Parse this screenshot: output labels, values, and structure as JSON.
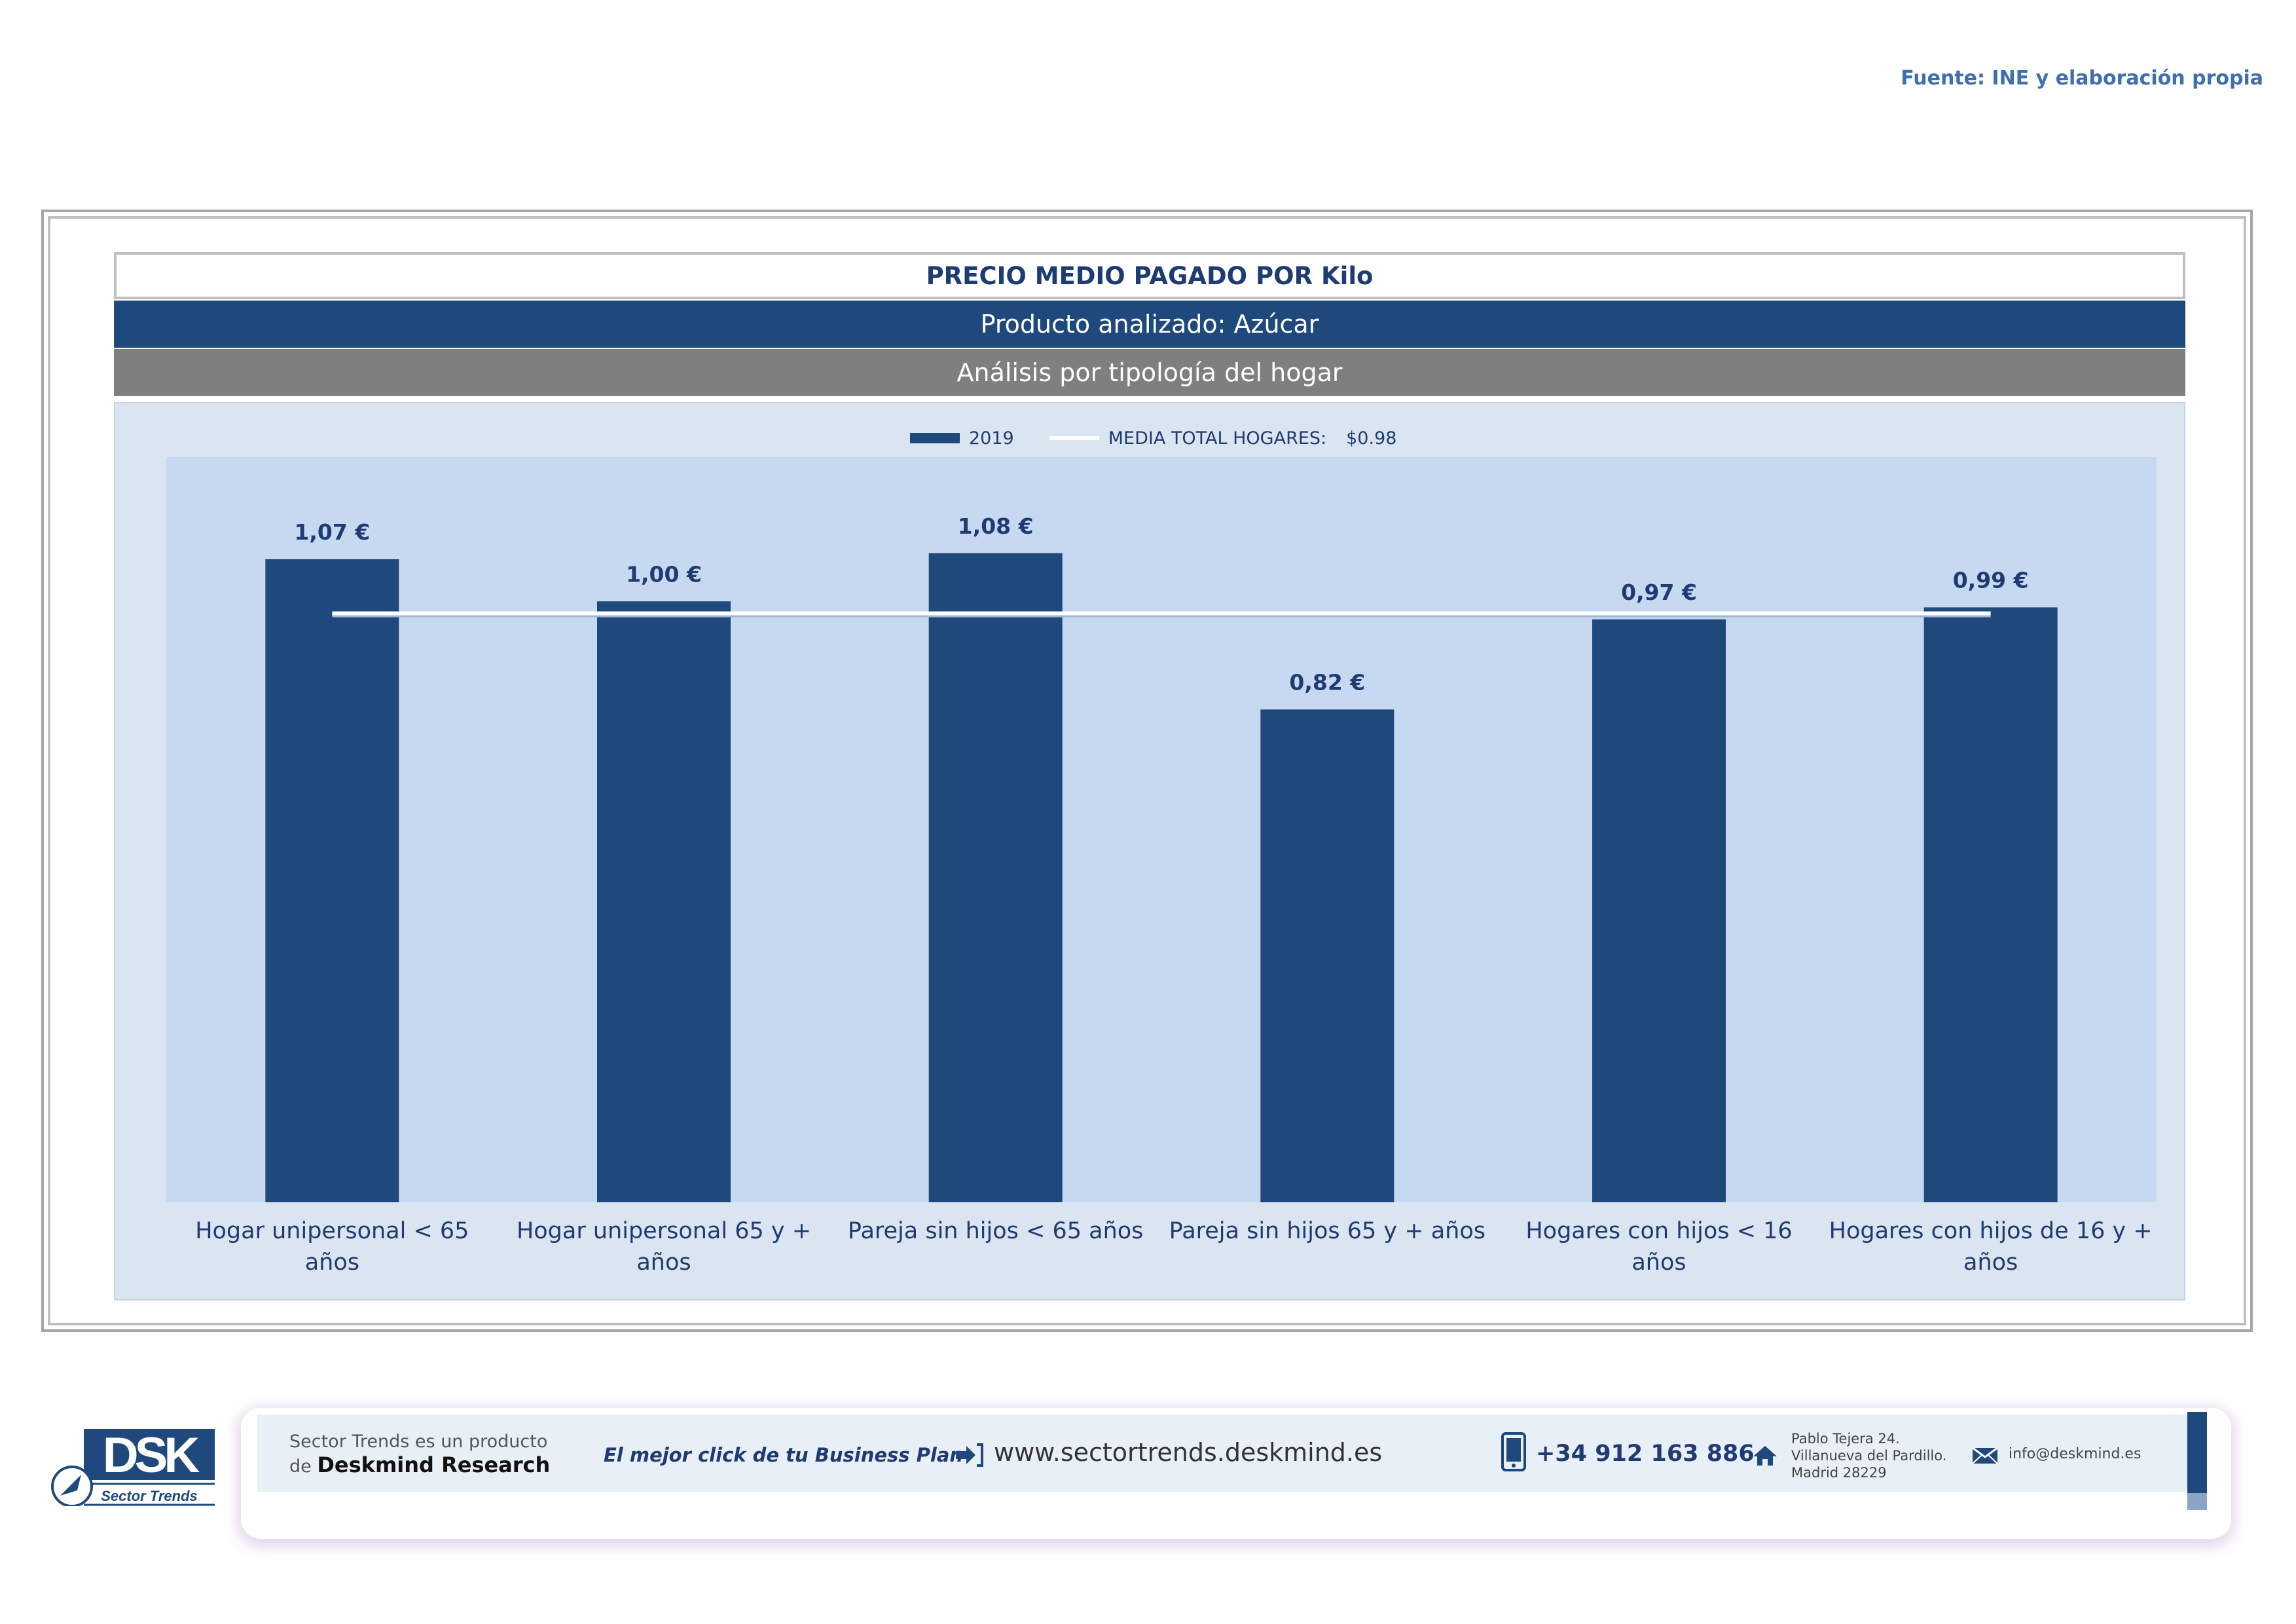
{
  "source": "Fuente: INE y elaboración propia",
  "header": {
    "title": "PRECIO MEDIO PAGADO POR Kilo",
    "product": "Producto analizado: Azúcar",
    "analysis": "Análisis por tipología del hogar"
  },
  "legend": {
    "series_label": "2019",
    "line_label": "MEDIA TOTAL  HOGARES:",
    "line_value": "$0.98"
  },
  "chart_data": {
    "type": "bar",
    "categories": [
      "Hogar unipersonal < 65 años",
      "Hogar unipersonal  65 y + años",
      "Pareja sin hijos < 65 años",
      "Pareja sin hijos 65 y + años",
      "Hogares con hijos < 16 años",
      "Hogares con hijos de 16 y + años"
    ],
    "category_lines": [
      [
        "Hogar unipersonal < 65 años"
      ],
      [
        "Hogar unipersonal  65 y +",
        "años"
      ],
      [
        "Pareja sin hijos < 65 años"
      ],
      [
        "Pareja sin hijos 65 y + años"
      ],
      [
        "Hogares con hijos < 16 años"
      ],
      [
        "Hogares con hijos de 16 y +",
        "años"
      ]
    ],
    "series": [
      {
        "name": "2019",
        "values": [
          1.07,
          1.0,
          1.08,
          0.82,
          0.97,
          0.99
        ],
        "color": "#1f497d"
      }
    ],
    "data_labels": [
      "1,07 €",
      "1,00 €",
      "1,08 €",
      "0,82 €",
      "0,97 €",
      "0,99 €"
    ],
    "reference_line": {
      "name": "MEDIA TOTAL  HOGARES",
      "value": 0.98,
      "color": "#ffffff"
    },
    "ylim": [
      0,
      1.24
    ],
    "grid": false,
    "legend_position": "top",
    "plot_background": "#c6d9f1",
    "chart_background": "#dbe5f1"
  },
  "footer": {
    "logo_text": "DSK",
    "logo_subtitle": "Sector Trends",
    "product_line1": "Sector Trends es un producto",
    "product_line2_prefix": "de ",
    "product_line2_brand": "Deskmind Research",
    "tagline": "El mejor click de tu Business Plan",
    "url": "www.sectortrends.deskmind.es",
    "phone": "+34 912 163 886",
    "address_line1": "Pablo Tejera 24.",
    "address_line2": "Villanueva del Pardillo.",
    "address_line3": "Madrid 28229",
    "email": "info@deskmind.es",
    "accent_color": "#1f497d"
  }
}
